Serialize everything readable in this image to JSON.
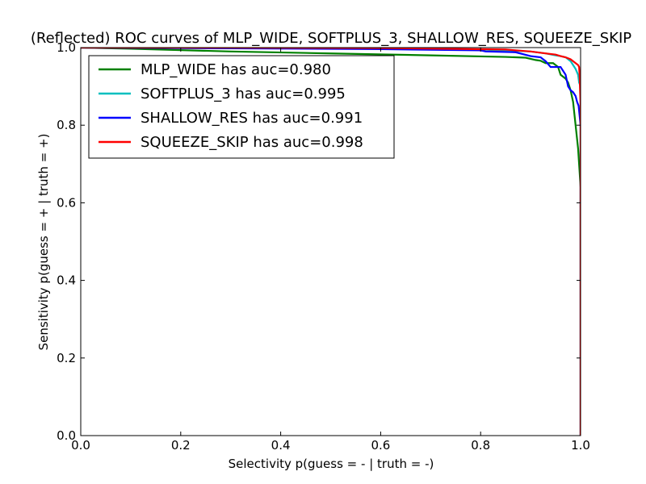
{
  "chart_data": {
    "type": "line",
    "title": "(Reflected) ROC curves of MLP_WIDE, SOFTPLUS_3, SHALLOW_RES, SQUEEZE_SKIP",
    "xlabel": "Selectivity p(guess = - | truth = -)",
    "ylabel": "Sensitivity p(guess = + | truth = +)",
    "xlim": [
      0.0,
      1.0
    ],
    "ylim": [
      0.0,
      1.0
    ],
    "xticks": [
      "0.0",
      "0.2",
      "0.4",
      "0.6",
      "0.8",
      "1.0"
    ],
    "yticks": [
      "0.0",
      "0.2",
      "0.4",
      "0.6",
      "0.8",
      "1.0"
    ],
    "grid": false,
    "legend_position": "top-left",
    "series": [
      {
        "name": "MLP_WIDE has auc=0.980",
        "color": "#008000",
        "x": [
          0.0,
          0.1,
          0.3,
          0.5,
          0.7,
          0.85,
          0.89,
          0.91,
          0.92,
          0.93,
          0.945,
          0.955,
          0.96,
          0.97,
          0.975,
          0.98,
          0.985,
          0.99,
          0.995,
          0.998,
          1.0,
          1.0
        ],
        "y": [
          1.0,
          0.997,
          0.99,
          0.985,
          0.98,
          0.976,
          0.974,
          0.968,
          0.966,
          0.96,
          0.96,
          0.95,
          0.93,
          0.92,
          0.91,
          0.89,
          0.86,
          0.8,
          0.74,
          0.68,
          0.64,
          0.0
        ]
      },
      {
        "name": "SOFTPLUS_3 has auc=0.995",
        "color": "#00BFBF",
        "x": [
          0.0,
          0.2,
          0.5,
          0.8,
          0.9,
          0.93,
          0.95,
          0.96,
          0.97,
          0.98,
          0.985,
          0.99,
          0.995,
          0.997,
          1.0,
          1.0
        ],
        "y": [
          1.0,
          1.0,
          0.998,
          0.995,
          0.99,
          0.985,
          0.98,
          0.978,
          0.975,
          0.965,
          0.955,
          0.945,
          0.93,
          0.91,
          0.9,
          0.0
        ]
      },
      {
        "name": "SHALLOW_RES has auc=0.991",
        "color": "#0000FF",
        "x": [
          0.0,
          0.3,
          0.6,
          0.8,
          0.81,
          0.87,
          0.9,
          0.92,
          0.93,
          0.94,
          0.96,
          0.97,
          0.975,
          0.98,
          0.985,
          0.99,
          0.993,
          0.996,
          1.0,
          1.0
        ],
        "y": [
          1.0,
          0.998,
          0.996,
          0.993,
          0.99,
          0.988,
          0.978,
          0.975,
          0.965,
          0.95,
          0.95,
          0.93,
          0.9,
          0.89,
          0.885,
          0.875,
          0.86,
          0.85,
          0.8,
          0.0
        ]
      },
      {
        "name": "SQUEEZE_SKIP has auc=0.998",
        "color": "#FF0000",
        "x": [
          0.0,
          0.3,
          0.6,
          0.85,
          0.9,
          0.93,
          0.95,
          0.96,
          0.97,
          0.98,
          0.985,
          0.99,
          0.995,
          0.997,
          0.998,
          1.0,
          1.0
        ],
        "y": [
          1.0,
          1.0,
          0.999,
          0.995,
          0.99,
          0.985,
          0.982,
          0.978,
          0.975,
          0.97,
          0.965,
          0.96,
          0.955,
          0.95,
          0.93,
          0.85,
          0.0
        ]
      }
    ]
  }
}
